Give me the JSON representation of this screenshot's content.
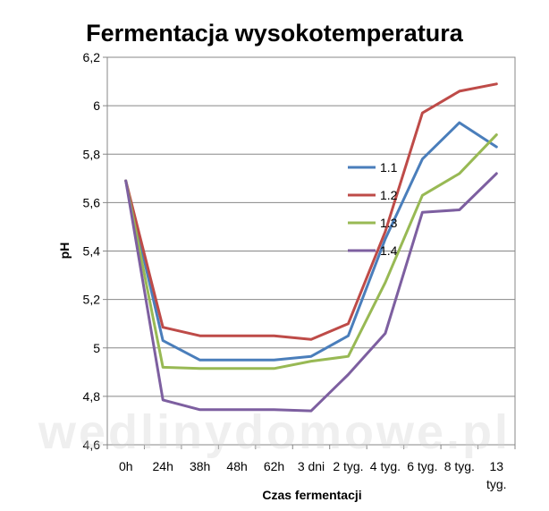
{
  "chart_data": {
    "type": "line",
    "title": "Fermentacja wysokotemperatura",
    "xlabel": "Czas fermentacji",
    "ylabel": "pH",
    "categories": [
      [
        "0h"
      ],
      [
        "24h"
      ],
      [
        "38h"
      ],
      [
        "48h"
      ],
      [
        "62h"
      ],
      [
        "3 dni"
      ],
      [
        "2 tyg."
      ],
      [
        "4 tyg."
      ],
      [
        "6 tyg."
      ],
      [
        "8 tyg."
      ],
      [
        "13",
        "tyg."
      ]
    ],
    "ylim": [
      4.6,
      6.2
    ],
    "yticks": [
      "4,6",
      "4,8",
      "5",
      "5,2",
      "5,4",
      "5,6",
      "5,8",
      "6",
      "6,2"
    ],
    "grid": "horizontal",
    "legend_position": "right",
    "series": [
      {
        "name": "1.1",
        "color": "#4a7ebb",
        "values": [
          5.69,
          5.03,
          4.95,
          4.95,
          4.95,
          4.965,
          5.05,
          5.45,
          5.78,
          5.93,
          5.83
        ]
      },
      {
        "name": "1.2",
        "color": "#be4b48",
        "values": [
          5.69,
          5.085,
          5.05,
          5.05,
          5.05,
          5.035,
          5.1,
          5.48,
          5.97,
          6.06,
          6.09
        ]
      },
      {
        "name": "1.3",
        "color": "#98b954",
        "values": [
          5.69,
          4.92,
          4.915,
          4.915,
          4.915,
          4.945,
          4.965,
          5.27,
          5.63,
          5.72,
          5.88
        ]
      },
      {
        "name": "1.4",
        "color": "#7d5fa0",
        "values": [
          5.69,
          4.785,
          4.745,
          4.745,
          4.745,
          4.74,
          4.89,
          5.06,
          5.56,
          5.57,
          5.72
        ]
      }
    ]
  },
  "watermark": "wedlinydomowe.pl"
}
